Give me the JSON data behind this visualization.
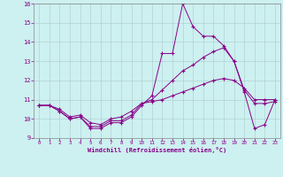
{
  "xlabel": "Windchill (Refroidissement éolien,°C)",
  "background_color": "#cdf0f0",
  "grid_color": "#aacccc",
  "line_color": "#880088",
  "xlim": [
    -0.5,
    23.5
  ],
  "ylim": [
    9,
    16
  ],
  "yticks": [
    9,
    10,
    11,
    12,
    13,
    14,
    15,
    16
  ],
  "xticks": [
    0,
    1,
    2,
    3,
    4,
    5,
    6,
    7,
    8,
    9,
    10,
    11,
    12,
    13,
    14,
    15,
    16,
    17,
    18,
    19,
    20,
    21,
    22,
    23
  ],
  "series1_x": [
    0,
    1,
    2,
    3,
    4,
    5,
    6,
    7,
    8,
    9,
    10,
    11,
    12,
    13,
    14,
    15,
    16,
    17,
    18,
    19,
    20,
    21,
    22,
    23
  ],
  "series1_y": [
    10.7,
    10.7,
    10.4,
    10.0,
    10.1,
    9.5,
    9.5,
    9.8,
    9.8,
    10.1,
    10.7,
    11.2,
    13.4,
    13.4,
    16.0,
    14.8,
    14.3,
    14.3,
    13.8,
    13.0,
    11.4,
    9.5,
    9.7,
    11.0
  ],
  "series2_x": [
    0,
    1,
    2,
    3,
    4,
    5,
    6,
    7,
    8,
    9,
    10,
    11,
    12,
    13,
    14,
    15,
    16,
    17,
    18,
    19,
    20,
    21,
    22,
    23
  ],
  "series2_y": [
    10.7,
    10.7,
    10.4,
    10.0,
    10.1,
    9.6,
    9.6,
    9.9,
    9.9,
    10.2,
    10.8,
    11.0,
    11.5,
    12.0,
    12.5,
    12.8,
    13.2,
    13.5,
    13.7,
    13.0,
    11.5,
    10.8,
    10.8,
    10.9
  ],
  "series3_x": [
    0,
    1,
    2,
    3,
    4,
    5,
    6,
    7,
    8,
    9,
    10,
    11,
    12,
    13,
    14,
    15,
    16,
    17,
    18,
    19,
    20,
    21,
    22,
    23
  ],
  "series3_y": [
    10.7,
    10.7,
    10.5,
    10.1,
    10.2,
    9.8,
    9.7,
    10.0,
    10.1,
    10.4,
    10.8,
    10.9,
    11.0,
    11.2,
    11.4,
    11.6,
    11.8,
    12.0,
    12.1,
    12.0,
    11.6,
    11.0,
    11.0,
    11.0
  ],
  "figsize": [
    3.2,
    2.0
  ],
  "dpi": 100
}
